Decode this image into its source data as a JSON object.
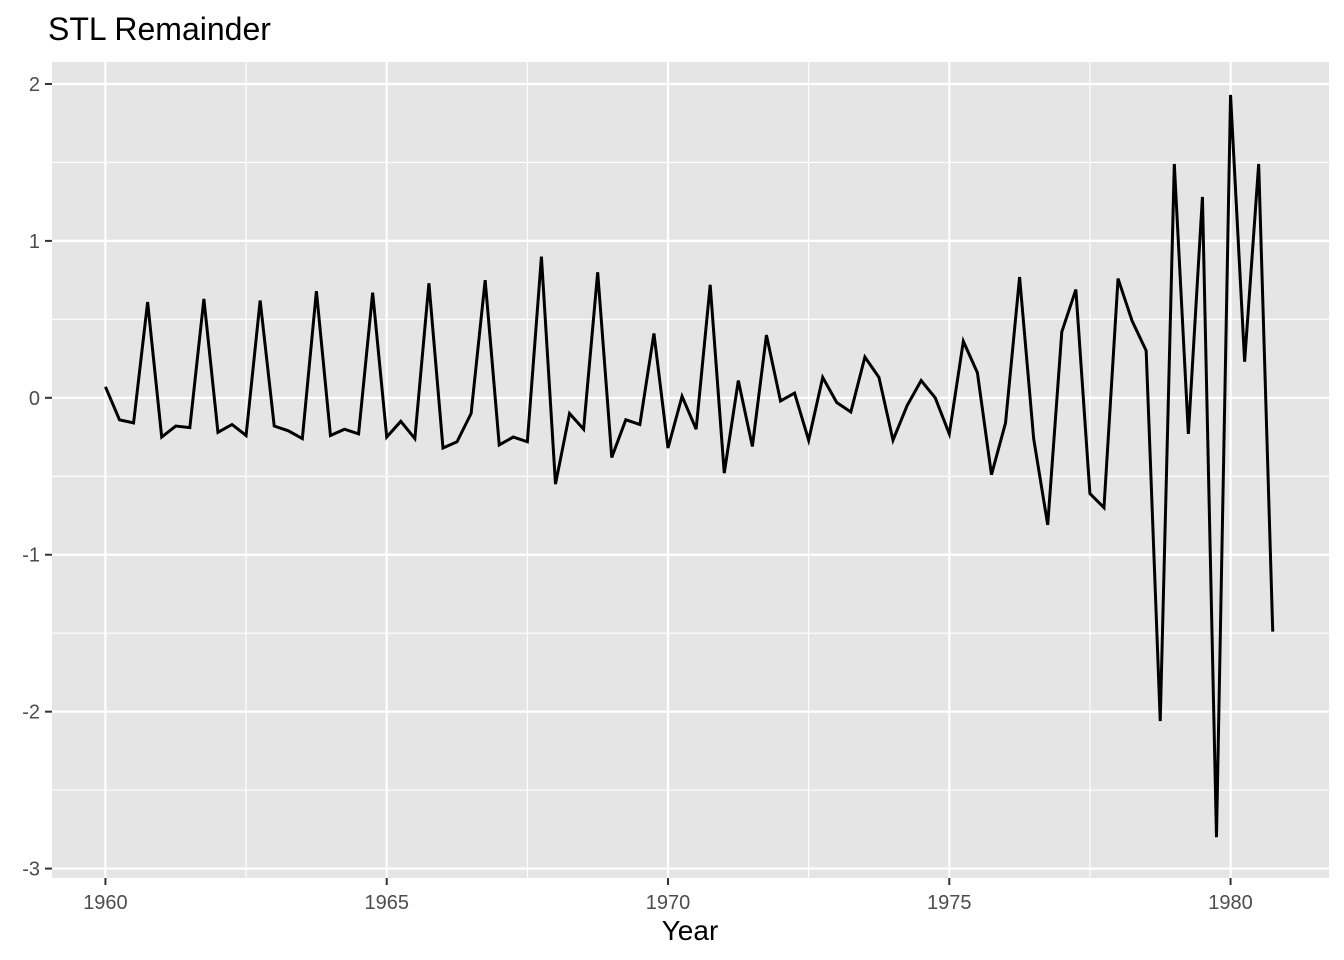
{
  "chart_data": {
    "type": "line",
    "title": "STL Remainder",
    "xlabel": "Year",
    "ylabel": "",
    "xlim": [
      1959.05,
      1981.75
    ],
    "ylim": [
      -3.06,
      2.14
    ],
    "x_ticks": [
      1960,
      1965,
      1970,
      1975,
      1980
    ],
    "x_tick_labels": [
      "1960",
      "1965",
      "1970",
      "1975",
      "1980"
    ],
    "y_ticks": [
      -3,
      -2,
      -1,
      0,
      1,
      2
    ],
    "y_tick_labels": [
      "-3",
      "-2",
      "-1",
      "0",
      "1",
      "2"
    ],
    "grid": true,
    "legend": "none",
    "colors": {
      "panel_background": "#e5e5e5",
      "grid": "#ffffff",
      "line": "#000000"
    },
    "series": [
      {
        "x_start": 1960,
        "x_step": 0.25,
        "values": [
          0.07,
          -0.14,
          -0.16,
          0.61,
          -0.25,
          -0.18,
          -0.19,
          0.63,
          -0.22,
          -0.17,
          -0.24,
          0.62,
          -0.18,
          -0.21,
          -0.26,
          0.68,
          -0.24,
          -0.2,
          -0.23,
          0.67,
          -0.25,
          -0.15,
          -0.26,
          0.73,
          -0.32,
          -0.28,
          -0.1,
          0.75,
          -0.3,
          -0.25,
          -0.28,
          0.9,
          -0.55,
          -0.1,
          -0.2,
          0.8,
          -0.38,
          -0.14,
          -0.17,
          0.41,
          -0.32,
          0.01,
          -0.2,
          0.72,
          -0.48,
          0.11,
          -0.31,
          0.4,
          -0.02,
          0.03,
          -0.27,
          0.13,
          -0.03,
          -0.09,
          0.26,
          0.13,
          -0.27,
          -0.05,
          0.11,
          0.0,
          -0.23,
          0.36,
          0.16,
          -0.49,
          -0.16,
          0.77,
          -0.26,
          -0.81,
          0.42,
          0.69,
          -0.61,
          -0.7,
          0.76,
          0.49,
          0.3,
          -2.06,
          1.49,
          -0.23,
          1.28,
          -2.8,
          1.93,
          0.23,
          1.49,
          -1.49
        ]
      }
    ]
  }
}
